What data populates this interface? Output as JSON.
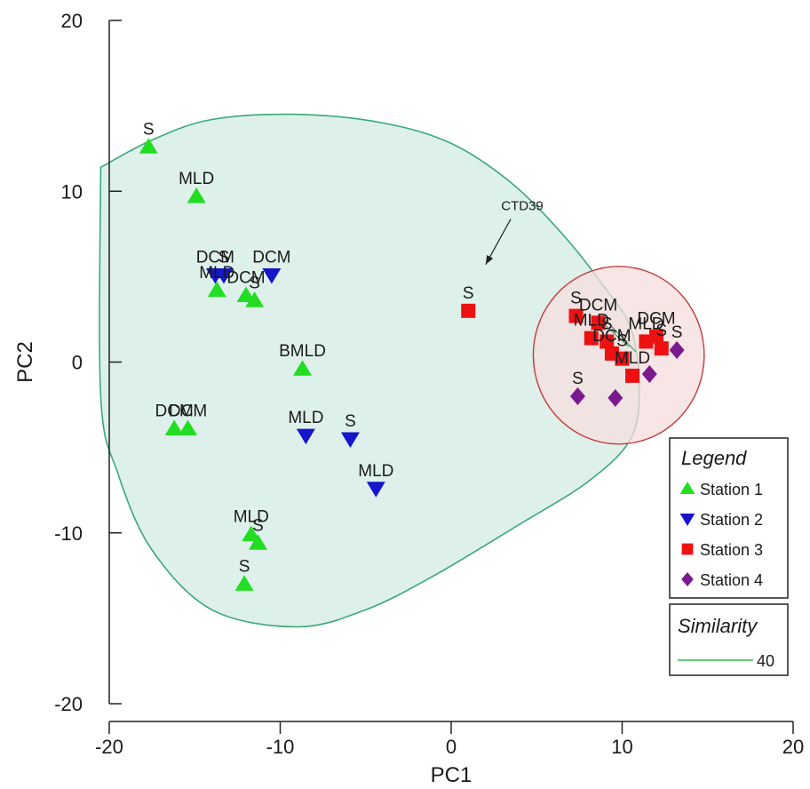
{
  "chart_data": {
    "type": "scatter",
    "xlabel": "PC1",
    "ylabel": "PC2",
    "xlim": [
      -20,
      20
    ],
    "ylim": [
      -20,
      20
    ],
    "xticks": [
      "-20",
      "-10",
      "0",
      "10",
      "20"
    ],
    "yticks": [
      "-20",
      "-10",
      "0",
      "10",
      "20"
    ],
    "grid": false,
    "legend_placement": "right",
    "series": [
      {
        "name": "Station 1",
        "marker": "triangle-up",
        "color": "#22dd22",
        "points": [
          {
            "x": -17.7,
            "y": 12.6,
            "label": "S"
          },
          {
            "x": -14.9,
            "y": 9.7,
            "label": "MLD"
          },
          {
            "x": -13.7,
            "y": 4.2,
            "label": "MLD"
          },
          {
            "x": -12.0,
            "y": 3.9,
            "label": "DCM"
          },
          {
            "x": -11.5,
            "y": 3.6,
            "label": "S"
          },
          {
            "x": -8.7,
            "y": -0.4,
            "label": "BMLD"
          },
          {
            "x": -16.2,
            "y": -3.9,
            "label": "DCM"
          },
          {
            "x": -15.4,
            "y": -3.9,
            "label": "DCM"
          },
          {
            "x": -11.7,
            "y": -10.1,
            "label": "MLD"
          },
          {
            "x": -11.3,
            "y": -10.6,
            "label": "S"
          },
          {
            "x": -12.1,
            "y": -13.0,
            "label": "S"
          }
        ]
      },
      {
        "name": "Station 2",
        "marker": "triangle-down",
        "color": "#1515cc",
        "points": [
          {
            "x": -13.8,
            "y": 5.1,
            "label": "DCM"
          },
          {
            "x": -13.3,
            "y": 5.1,
            "label": "S"
          },
          {
            "x": -10.5,
            "y": 5.1,
            "label": "DCM"
          },
          {
            "x": -8.5,
            "y": -4.3,
            "label": "MLD"
          },
          {
            "x": -5.9,
            "y": -4.5,
            "label": "S"
          },
          {
            "x": -4.4,
            "y": -7.4,
            "label": "MLD"
          }
        ]
      },
      {
        "name": "Station 3",
        "marker": "square",
        "color": "#ee1111",
        "points": [
          {
            "x": 1.0,
            "y": 3.0,
            "label": "S"
          },
          {
            "x": 7.3,
            "y": 2.7,
            "label": "S"
          },
          {
            "x": 8.6,
            "y": 2.3,
            "label": "DCM"
          },
          {
            "x": 8.2,
            "y": 1.4,
            "label": "MLD"
          },
          {
            "x": 9.1,
            "y": 1.2,
            "label": "S"
          },
          {
            "x": 9.4,
            "y": 0.5,
            "label": "DCM"
          },
          {
            "x": 10.0,
            "y": 0.2,
            "label": "S"
          },
          {
            "x": 10.6,
            "y": -0.8,
            "label": "MLD"
          },
          {
            "x": 12.0,
            "y": 1.5,
            "label": "DCM"
          },
          {
            "x": 12.3,
            "y": 0.8,
            "label": "S"
          },
          {
            "x": 11.4,
            "y": 1.2,
            "label": "MLD"
          }
        ]
      },
      {
        "name": "Station 4",
        "marker": "diamond",
        "color": "#7a1a8e",
        "points": [
          {
            "x": 7.4,
            "y": -2.0,
            "label": "S"
          },
          {
            "x": 9.6,
            "y": -2.1,
            "label": ""
          },
          {
            "x": 11.6,
            "y": -0.7,
            "label": ""
          },
          {
            "x": 13.2,
            "y": 0.7,
            "label": "S"
          }
        ]
      }
    ],
    "annotations": [
      {
        "text": "CTD39",
        "x": 1.3,
        "y": 9.1,
        "arrow_to": [
          1.5,
          5.4
        ]
      }
    ],
    "similarity_contours": [
      {
        "level": 40,
        "group": "large",
        "color": "#3aa87a",
        "fill": "#d7efe6"
      },
      {
        "level": 40,
        "group": "small",
        "color": "#c23a3a",
        "fill": "#f6dede"
      }
    ]
  },
  "legend": {
    "title": "Legend",
    "items": [
      "Station 1",
      "Station 2",
      "Station 3",
      "Station 4"
    ]
  },
  "similarity_legend": {
    "title": "Similarity",
    "value": "40"
  }
}
